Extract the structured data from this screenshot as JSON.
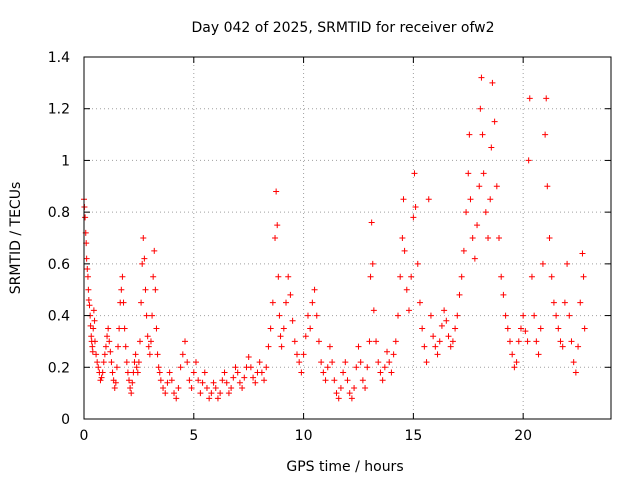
{
  "chart_data": {
    "type": "scatter",
    "title": "Day 042 of 2025, SRMTID for receiver ofw2",
    "xlabel": "GPS time / hours",
    "ylabel": "SRMTID / TECUs",
    "xlim": [
      0,
      24
    ],
    "ylim": [
      0,
      1.4
    ],
    "xticks": [
      0,
      5,
      10,
      15,
      20
    ],
    "yticks": [
      0,
      0.2,
      0.4,
      0.6,
      0.8,
      1,
      1.2,
      1.4
    ],
    "xtick_labels": [
      "0",
      "5",
      "10",
      "15",
      "20"
    ],
    "ytick_labels": [
      "0",
      "0.2",
      "0.4",
      "0.6",
      "0.8",
      "1",
      "1.2",
      "1.4"
    ],
    "grid": true,
    "marker": "+",
    "series": [
      {
        "name": "SRMTID",
        "color": "#ff0000",
        "points": [
          [
            0.0,
            0.85
          ],
          [
            0.02,
            0.82
          ],
          [
            0.05,
            0.78
          ],
          [
            0.08,
            0.72
          ],
          [
            0.1,
            0.68
          ],
          [
            0.12,
            0.62
          ],
          [
            0.15,
            0.58
          ],
          [
            0.18,
            0.55
          ],
          [
            0.2,
            0.5
          ],
          [
            0.22,
            0.46
          ],
          [
            0.25,
            0.44
          ],
          [
            0.28,
            0.4
          ],
          [
            0.3,
            0.36
          ],
          [
            0.33,
            0.32
          ],
          [
            0.35,
            0.3
          ],
          [
            0.38,
            0.28
          ],
          [
            0.4,
            0.26
          ],
          [
            0.42,
            0.35
          ],
          [
            0.45,
            0.42
          ],
          [
            0.48,
            0.38
          ],
          [
            0.5,
            0.3
          ],
          [
            0.55,
            0.25
          ],
          [
            0.6,
            0.22
          ],
          [
            0.65,
            0.2
          ],
          [
            0.7,
            0.18
          ],
          [
            0.75,
            0.15
          ],
          [
            0.8,
            0.16
          ],
          [
            0.85,
            0.18
          ],
          [
            0.9,
            0.22
          ],
          [
            0.95,
            0.25
          ],
          [
            1.0,
            0.28
          ],
          [
            1.05,
            0.32
          ],
          [
            1.1,
            0.35
          ],
          [
            1.15,
            0.3
          ],
          [
            1.2,
            0.26
          ],
          [
            1.25,
            0.22
          ],
          [
            1.3,
            0.18
          ],
          [
            1.35,
            0.15
          ],
          [
            1.4,
            0.12
          ],
          [
            1.45,
            0.14
          ],
          [
            1.5,
            0.2
          ],
          [
            1.55,
            0.28
          ],
          [
            1.6,
            0.35
          ],
          [
            1.65,
            0.45
          ],
          [
            1.7,
            0.5
          ],
          [
            1.75,
            0.55
          ],
          [
            1.8,
            0.45
          ],
          [
            1.85,
            0.35
          ],
          [
            1.9,
            0.28
          ],
          [
            1.95,
            0.22
          ],
          [
            2.0,
            0.18
          ],
          [
            2.05,
            0.15
          ],
          [
            2.1,
            0.12
          ],
          [
            2.15,
            0.1
          ],
          [
            2.2,
            0.14
          ],
          [
            2.25,
            0.18
          ],
          [
            2.3,
            0.22
          ],
          [
            2.35,
            0.25
          ],
          [
            2.4,
            0.2
          ],
          [
            2.45,
            0.18
          ],
          [
            2.5,
            0.22
          ],
          [
            2.55,
            0.3
          ],
          [
            2.6,
            0.45
          ],
          [
            2.65,
            0.6
          ],
          [
            2.7,
            0.7
          ],
          [
            2.75,
            0.62
          ],
          [
            2.8,
            0.5
          ],
          [
            2.85,
            0.4
          ],
          [
            2.9,
            0.32
          ],
          [
            2.95,
            0.28
          ],
          [
            3.0,
            0.25
          ],
          [
            3.05,
            0.3
          ],
          [
            3.1,
            0.4
          ],
          [
            3.15,
            0.55
          ],
          [
            3.2,
            0.65
          ],
          [
            3.25,
            0.5
          ],
          [
            3.3,
            0.35
          ],
          [
            3.35,
            0.25
          ],
          [
            3.4,
            0.2
          ],
          [
            3.45,
            0.18
          ],
          [
            3.5,
            0.15
          ],
          [
            3.6,
            0.12
          ],
          [
            3.7,
            0.1
          ],
          [
            3.8,
            0.14
          ],
          [
            3.9,
            0.18
          ],
          [
            4.0,
            0.15
          ],
          [
            4.1,
            0.1
          ],
          [
            4.2,
            0.08
          ],
          [
            4.3,
            0.12
          ],
          [
            4.4,
            0.2
          ],
          [
            4.5,
            0.25
          ],
          [
            4.6,
            0.3
          ],
          [
            4.7,
            0.22
          ],
          [
            4.8,
            0.15
          ],
          [
            4.9,
            0.12
          ],
          [
            5.0,
            0.18
          ],
          [
            5.1,
            0.22
          ],
          [
            5.2,
            0.15
          ],
          [
            5.3,
            0.1
          ],
          [
            5.4,
            0.14
          ],
          [
            5.5,
            0.18
          ],
          [
            5.6,
            0.12
          ],
          [
            5.7,
            0.08
          ],
          [
            5.8,
            0.1
          ],
          [
            5.9,
            0.14
          ],
          [
            6.0,
            0.12
          ],
          [
            6.1,
            0.08
          ],
          [
            6.2,
            0.1
          ],
          [
            6.3,
            0.15
          ],
          [
            6.4,
            0.18
          ],
          [
            6.5,
            0.14
          ],
          [
            6.6,
            0.1
          ],
          [
            6.7,
            0.12
          ],
          [
            6.8,
            0.16
          ],
          [
            6.9,
            0.2
          ],
          [
            7.0,
            0.18
          ],
          [
            7.1,
            0.14
          ],
          [
            7.2,
            0.12
          ],
          [
            7.3,
            0.16
          ],
          [
            7.4,
            0.2
          ],
          [
            7.5,
            0.24
          ],
          [
            7.6,
            0.2
          ],
          [
            7.7,
            0.16
          ],
          [
            7.8,
            0.14
          ],
          [
            7.9,
            0.18
          ],
          [
            8.0,
            0.22
          ],
          [
            8.1,
            0.18
          ],
          [
            8.2,
            0.15
          ],
          [
            8.3,
            0.2
          ],
          [
            8.4,
            0.28
          ],
          [
            8.5,
            0.35
          ],
          [
            8.6,
            0.45
          ],
          [
            8.7,
            0.7
          ],
          [
            8.75,
            0.88
          ],
          [
            8.8,
            0.75
          ],
          [
            8.85,
            0.55
          ],
          [
            8.9,
            0.4
          ],
          [
            8.95,
            0.32
          ],
          [
            9.0,
            0.28
          ],
          [
            9.1,
            0.35
          ],
          [
            9.2,
            0.45
          ],
          [
            9.3,
            0.55
          ],
          [
            9.4,
            0.48
          ],
          [
            9.5,
            0.38
          ],
          [
            9.6,
            0.3
          ],
          [
            9.7,
            0.25
          ],
          [
            9.8,
            0.22
          ],
          [
            9.9,
            0.18
          ],
          [
            10.0,
            0.25
          ],
          [
            10.1,
            0.32
          ],
          [
            10.2,
            0.4
          ],
          [
            10.3,
            0.35
          ],
          [
            10.4,
            0.45
          ],
          [
            10.5,
            0.5
          ],
          [
            10.6,
            0.4
          ],
          [
            10.7,
            0.3
          ],
          [
            10.8,
            0.22
          ],
          [
            10.9,
            0.18
          ],
          [
            11.0,
            0.15
          ],
          [
            11.1,
            0.2
          ],
          [
            11.2,
            0.28
          ],
          [
            11.3,
            0.22
          ],
          [
            11.4,
            0.15
          ],
          [
            11.5,
            0.1
          ],
          [
            11.6,
            0.08
          ],
          [
            11.7,
            0.12
          ],
          [
            11.8,
            0.18
          ],
          [
            11.9,
            0.22
          ],
          [
            12.0,
            0.15
          ],
          [
            12.1,
            0.1
          ],
          [
            12.2,
            0.08
          ],
          [
            12.3,
            0.12
          ],
          [
            12.4,
            0.2
          ],
          [
            12.5,
            0.28
          ],
          [
            12.6,
            0.22
          ],
          [
            12.7,
            0.15
          ],
          [
            12.8,
            0.12
          ],
          [
            12.9,
            0.2
          ],
          [
            13.0,
            0.3
          ],
          [
            13.05,
            0.55
          ],
          [
            13.1,
            0.76
          ],
          [
            13.15,
            0.6
          ],
          [
            13.2,
            0.42
          ],
          [
            13.3,
            0.3
          ],
          [
            13.4,
            0.22
          ],
          [
            13.5,
            0.18
          ],
          [
            13.6,
            0.15
          ],
          [
            13.7,
            0.2
          ],
          [
            13.8,
            0.26
          ],
          [
            13.9,
            0.22
          ],
          [
            14.0,
            0.18
          ],
          [
            14.1,
            0.25
          ],
          [
            14.2,
            0.3
          ],
          [
            14.3,
            0.4
          ],
          [
            14.4,
            0.55
          ],
          [
            14.5,
            0.7
          ],
          [
            14.55,
            0.85
          ],
          [
            14.6,
            0.65
          ],
          [
            14.7,
            0.5
          ],
          [
            14.8,
            0.42
          ],
          [
            14.9,
            0.55
          ],
          [
            15.0,
            0.78
          ],
          [
            15.05,
            0.95
          ],
          [
            15.1,
            0.82
          ],
          [
            15.2,
            0.6
          ],
          [
            15.3,
            0.45
          ],
          [
            15.4,
            0.35
          ],
          [
            15.5,
            0.28
          ],
          [
            15.6,
            0.22
          ],
          [
            15.7,
            0.85
          ],
          [
            15.8,
            0.4
          ],
          [
            15.9,
            0.32
          ],
          [
            16.0,
            0.28
          ],
          [
            16.1,
            0.25
          ],
          [
            16.2,
            0.3
          ],
          [
            16.3,
            0.36
          ],
          [
            16.4,
            0.42
          ],
          [
            16.5,
            0.38
          ],
          [
            16.6,
            0.32
          ],
          [
            16.7,
            0.28
          ],
          [
            16.8,
            0.3
          ],
          [
            16.9,
            0.35
          ],
          [
            17.0,
            0.4
          ],
          [
            17.1,
            0.48
          ],
          [
            17.2,
            0.55
          ],
          [
            17.3,
            0.65
          ],
          [
            17.4,
            0.8
          ],
          [
            17.5,
            0.95
          ],
          [
            17.55,
            1.1
          ],
          [
            17.6,
            0.85
          ],
          [
            17.7,
            0.7
          ],
          [
            17.8,
            0.62
          ],
          [
            17.9,
            0.75
          ],
          [
            18.0,
            0.9
          ],
          [
            18.05,
            1.2
          ],
          [
            18.1,
            1.32
          ],
          [
            18.15,
            1.1
          ],
          [
            18.2,
            0.95
          ],
          [
            18.3,
            0.8
          ],
          [
            18.4,
            0.7
          ],
          [
            18.5,
            0.85
          ],
          [
            18.55,
            1.05
          ],
          [
            18.6,
            1.3
          ],
          [
            18.7,
            1.15
          ],
          [
            18.8,
            0.9
          ],
          [
            18.9,
            0.7
          ],
          [
            19.0,
            0.55
          ],
          [
            19.1,
            0.48
          ],
          [
            19.2,
            0.4
          ],
          [
            19.3,
            0.35
          ],
          [
            19.4,
            0.3
          ],
          [
            19.5,
            0.25
          ],
          [
            19.6,
            0.2
          ],
          [
            19.7,
            0.22
          ],
          [
            19.8,
            0.3
          ],
          [
            19.9,
            0.35
          ],
          [
            20.0,
            0.4
          ],
          [
            20.1,
            0.34
          ],
          [
            20.2,
            0.3
          ],
          [
            20.25,
            1.0
          ],
          [
            20.3,
            1.24
          ],
          [
            20.4,
            0.55
          ],
          [
            20.5,
            0.4
          ],
          [
            20.6,
            0.3
          ],
          [
            20.7,
            0.25
          ],
          [
            20.8,
            0.35
          ],
          [
            20.9,
            0.6
          ],
          [
            21.0,
            1.1
          ],
          [
            21.05,
            1.24
          ],
          [
            21.1,
            0.9
          ],
          [
            21.2,
            0.7
          ],
          [
            21.3,
            0.55
          ],
          [
            21.4,
            0.45
          ],
          [
            21.5,
            0.4
          ],
          [
            21.6,
            0.35
          ],
          [
            21.7,
            0.3
          ],
          [
            21.8,
            0.28
          ],
          [
            21.9,
            0.45
          ],
          [
            22.0,
            0.6
          ],
          [
            22.1,
            0.4
          ],
          [
            22.2,
            0.3
          ],
          [
            22.3,
            0.22
          ],
          [
            22.4,
            0.18
          ],
          [
            22.5,
            0.28
          ],
          [
            22.6,
            0.45
          ],
          [
            22.7,
            0.64
          ],
          [
            22.75,
            0.55
          ],
          [
            22.8,
            0.35
          ]
        ]
      }
    ]
  }
}
